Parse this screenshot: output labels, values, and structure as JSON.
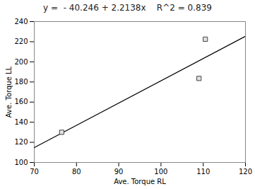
{
  "chart_data": {
    "type": "scatter",
    "title": "y =  - 40.246 + 2.2138x    R^2 = 0.839",
    "x_label": "Ave. Torque RL",
    "y_label": "Ave. Torque LL",
    "series": [
      {
        "type": "scatter",
        "marker": "square",
        "color": "#444444",
        "x": [
          76.5,
          109.0,
          110.5
        ],
        "values": [
          130.0,
          183.5,
          222.5
        ]
      },
      {
        "type": "line",
        "color": "#000000",
        "x": [
          70,
          120
        ],
        "values": [
          114.72,
          225.41
        ]
      }
    ],
    "xlim": [
      70,
      120
    ],
    "ylim": [
      100,
      240
    ],
    "xticks": [
      70,
      80,
      90,
      100,
      110,
      120
    ],
    "yticks": [
      100,
      120,
      140,
      160,
      180,
      200,
      220,
      240
    ],
    "grid": false
  }
}
